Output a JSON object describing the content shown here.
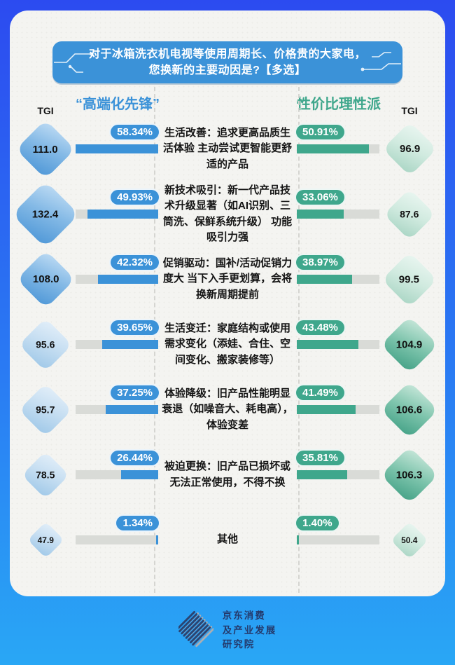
{
  "banner": {
    "title_line1": "对于冰箱洗衣机电视等使用周期长、价格贵的大家电，",
    "title_line2": "您换新的主要动因是?【多选】"
  },
  "columns": {
    "left": {
      "title": "“高端化先锋”",
      "tgi_label": "TGI"
    },
    "right": {
      "title": "性价比理性派",
      "tgi_label": "TGI"
    }
  },
  "chart_data": {
    "type": "bar",
    "orientation": "horizontal-mirrored",
    "title": "对于冰箱洗衣机电视等使用周期长、价格贵的大家电，您换新的主要动因是?【多选】",
    "series_names": [
      "高端化先锋",
      "性价比理性派"
    ],
    "value_suffix": "%",
    "value_max": 58.34,
    "legend_position": "top",
    "grid": false,
    "rows": [
      {
        "label": "生活改善：追求更高品质生活体验 主动尝试更智能更舒适的产品",
        "left": {
          "pct": 58.34,
          "pct_label": "58.34%",
          "tgi": 111.0,
          "tgi_label": "111.0"
        },
        "right": {
          "pct": 50.91,
          "pct_label": "50.91%",
          "tgi": 96.9,
          "tgi_label": "96.9"
        }
      },
      {
        "label": "新技术吸引：新一代产品技术升级显著（如AI识别、三筒洗、保鲜系统升级） 功能吸引力强",
        "left": {
          "pct": 49.93,
          "pct_label": "49.93%",
          "tgi": 132.4,
          "tgi_label": "132.4"
        },
        "right": {
          "pct": 33.06,
          "pct_label": "33.06%",
          "tgi": 87.6,
          "tgi_label": "87.6"
        }
      },
      {
        "label": "促销驱动：国补/活动促销力度大 当下入手更划算，会将换新周期提前",
        "left": {
          "pct": 42.32,
          "pct_label": "42.32%",
          "tgi": 108.0,
          "tgi_label": "108.0"
        },
        "right": {
          "pct": 38.97,
          "pct_label": "38.97%",
          "tgi": 99.5,
          "tgi_label": "99.5"
        }
      },
      {
        "label": "生活变迁：家庭结构或使用需求变化（添娃、合住、空间变化、搬家装修等）",
        "left": {
          "pct": 39.65,
          "pct_label": "39.65%",
          "tgi": 95.6,
          "tgi_label": "95.6"
        },
        "right": {
          "pct": 43.48,
          "pct_label": "43.48%",
          "tgi": 104.9,
          "tgi_label": "104.9"
        }
      },
      {
        "label": "体验降级：旧产品性能明显衰退（如噪音大、耗电高），体验变差",
        "left": {
          "pct": 37.25,
          "pct_label": "37.25%",
          "tgi": 95.7,
          "tgi_label": "95.7"
        },
        "right": {
          "pct": 41.49,
          "pct_label": "41.49%",
          "tgi": 106.6,
          "tgi_label": "106.6"
        }
      },
      {
        "label": "被迫更换：旧产品已损坏或无法正常使用，不得不换",
        "left": {
          "pct": 26.44,
          "pct_label": "26.44%",
          "tgi": 78.5,
          "tgi_label": "78.5"
        },
        "right": {
          "pct": 35.81,
          "pct_label": "35.81%",
          "tgi": 106.3,
          "tgi_label": "106.3"
        }
      },
      {
        "label": "其他",
        "left": {
          "pct": 1.34,
          "pct_label": "1.34%",
          "tgi": 47.9,
          "tgi_label": "47.9"
        },
        "right": {
          "pct": 1.4,
          "pct_label": "1.40%",
          "tgi": 50.4,
          "tgi_label": "50.4"
        }
      }
    ]
  },
  "footer": {
    "org_line1": "京东消费",
    "org_line2": "及产业发展",
    "org_line3": "研究院"
  },
  "colors": {
    "accent_blue": "#3B92D8",
    "accent_green": "#3FA78C",
    "track_gray": "#D9DBD7",
    "page_top": "#2C4BF0",
    "page_bottom": "#29A7F5",
    "card_bg": "#F4F4F1",
    "logo_navy": "#2A4472",
    "logo_gray": "#A9AEB5"
  }
}
